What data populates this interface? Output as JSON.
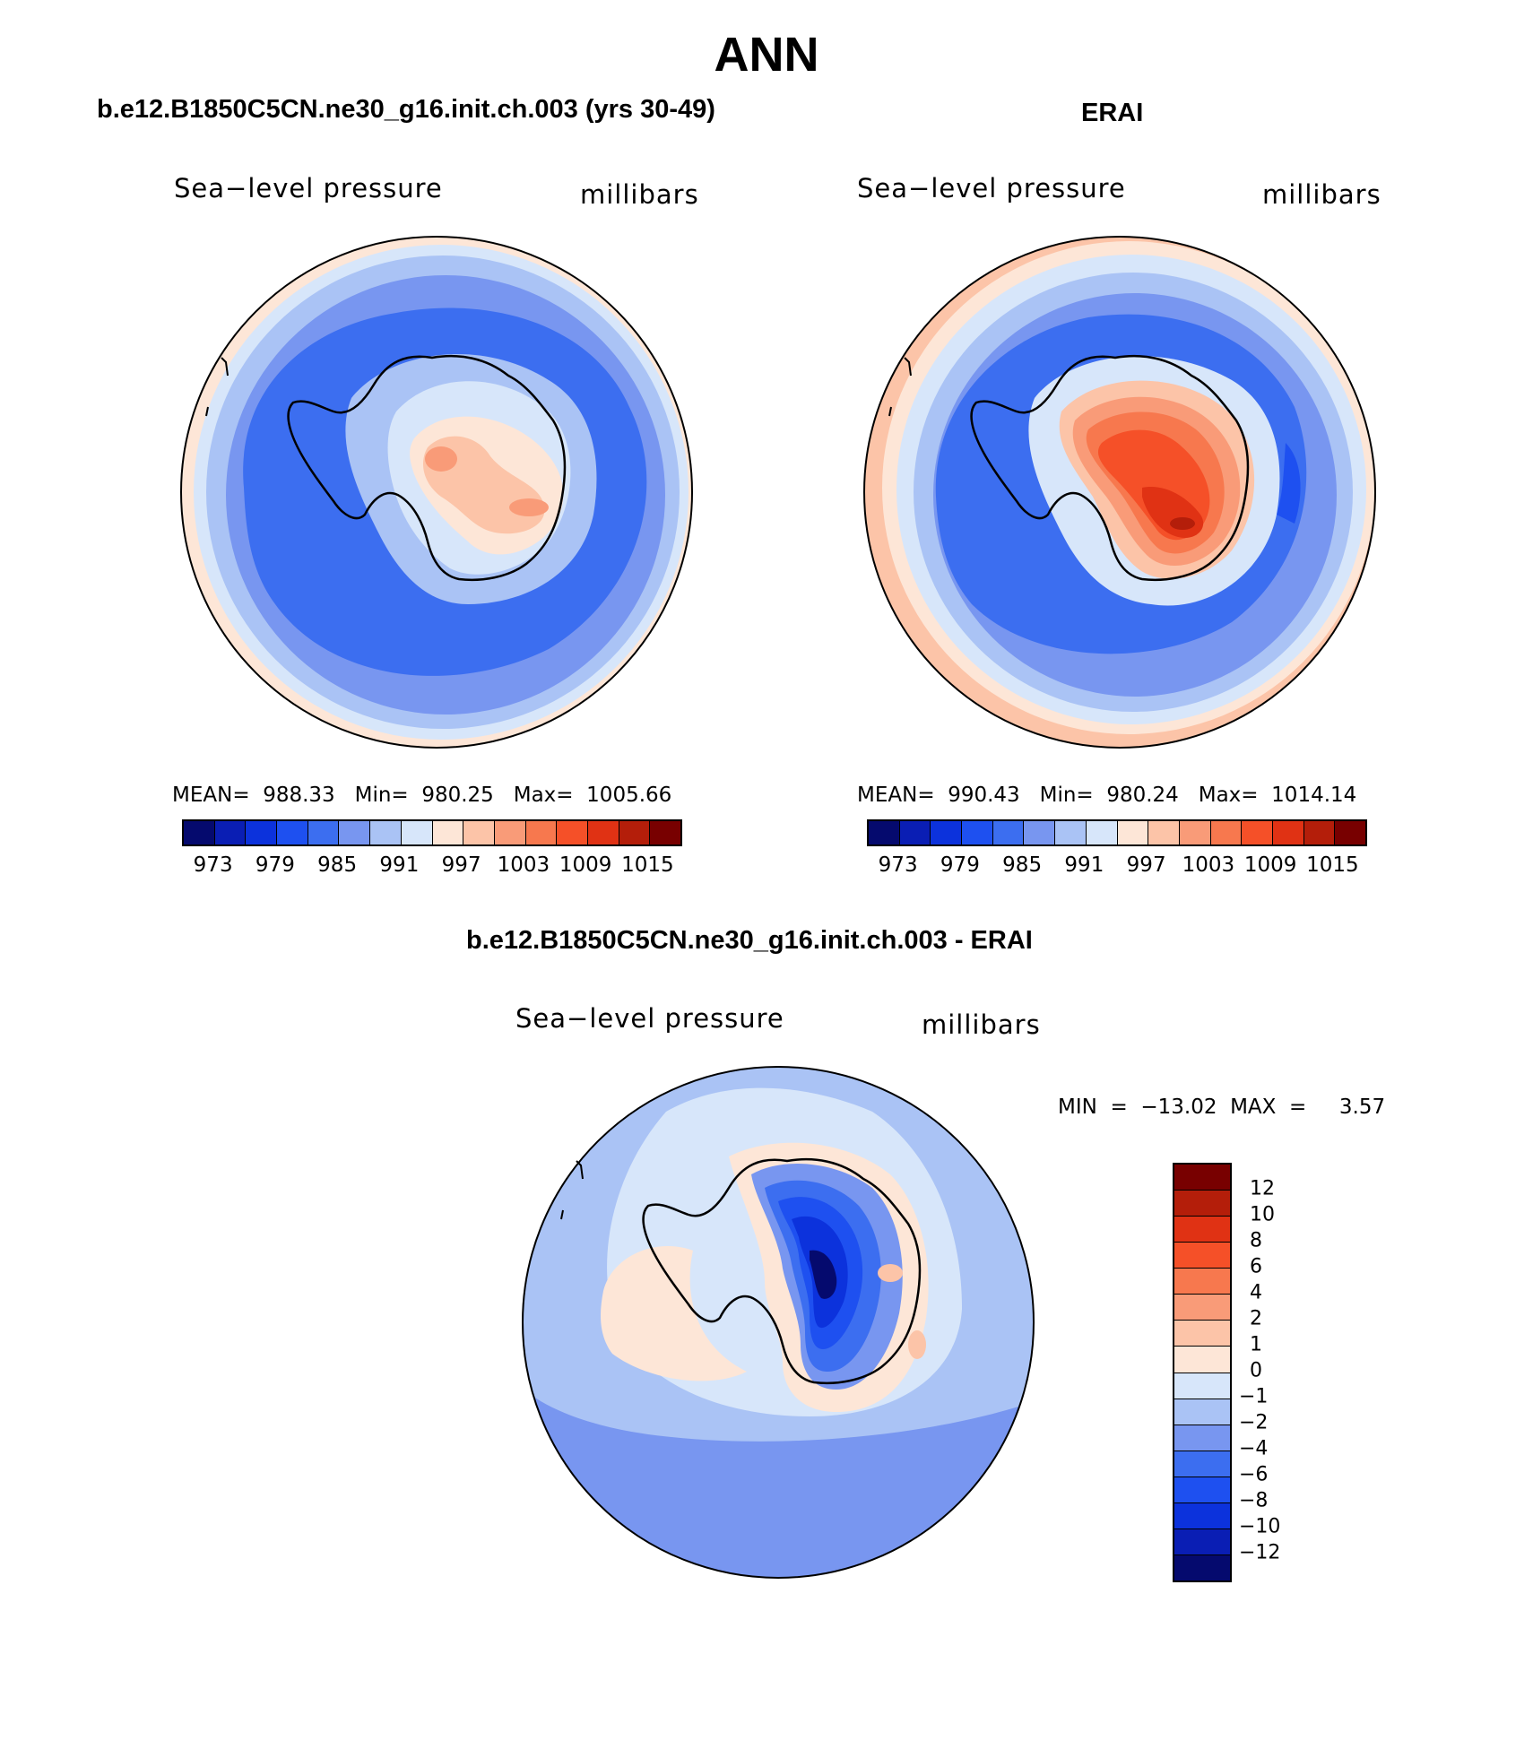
{
  "figure": {
    "title": "ANN"
  },
  "panels": {
    "model": {
      "title": "b.e12.B1850C5CN.ne30_g16.init.ch.003 (yrs 30-49)",
      "variable": "Sea−level pressure",
      "units": "millibars",
      "stats": "MEAN=  988.33   Min=  980.25   Max=  1005.66"
    },
    "obs": {
      "title": "ERAI",
      "variable": "Sea−level pressure",
      "units": "millibars",
      "stats": "MEAN=  990.43   Min=  980.24   Max=  1014.14"
    },
    "diff": {
      "title": "b.e12.B1850C5CN.ne30_g16.init.ch.003 - ERAI",
      "variable": "Sea−level pressure",
      "units": "millibars",
      "stats": "MIN  =  −13.02  MAX  =     3.57"
    }
  },
  "colorbar_abs": {
    "tick_labels": [
      "973",
      "979",
      "985",
      "991",
      "997",
      "1003",
      "1009",
      "1015"
    ],
    "colors": [
      "#050a6e",
      "#0a1eb4",
      "#0c32dc",
      "#1e50f0",
      "#3c6ef0",
      "#7896f0",
      "#aac3f5",
      "#d7e6fa",
      "#fde6d7",
      "#fcc4a8",
      "#f99b78",
      "#f7784e",
      "#f55028",
      "#e03214",
      "#b41e0a",
      "#780000"
    ]
  },
  "colorbar_diff": {
    "tick_labels": [
      "12",
      "10",
      "8",
      "6",
      "4",
      "2",
      "1",
      "0",
      "−1",
      "−2",
      "−4",
      "−6",
      "−8",
      "−10",
      "−12"
    ],
    "colors": [
      "#780000",
      "#b41e0a",
      "#e03214",
      "#f55028",
      "#f7784e",
      "#f99b78",
      "#fcc4a8",
      "#fde6d7",
      "#d7e6fa",
      "#aac3f5",
      "#7896f0",
      "#3c6ef0",
      "#1e50f0",
      "#0c32dc",
      "#0a1eb4",
      "#050a6e"
    ]
  },
  "map_colors": {
    "ocean_deep": "#3c6ef0",
    "ocean_mid": "#7896f0",
    "ocean_light": "#aac3f5",
    "ocean_pale": "#d7e6fa",
    "warm_pale": "#fde6d7",
    "warm_light": "#fcc4a8",
    "warm_mid": "#f99b78",
    "warm_strong": "#f55028",
    "warm_deep": "#e03214",
    "warm_darkest": "#b41e0a",
    "blue_strong": "#1e50f0",
    "blue_deep": "#0c32dc",
    "blue_darkest": "#0a1eb4",
    "blue_navy": "#050a6e"
  }
}
